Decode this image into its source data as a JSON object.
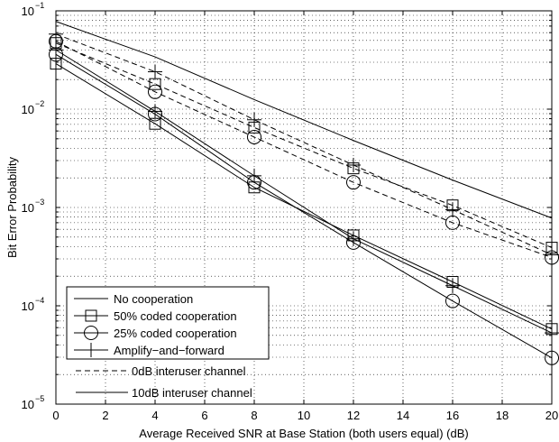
{
  "chart_data": {
    "type": "line",
    "title": "",
    "xlabel": "Average Received SNR at Base Station (both users equal) (dB)",
    "ylabel": "Bit Error Probability",
    "xlim": [
      0,
      20
    ],
    "ylim": [
      1e-05,
      0.1
    ],
    "yscale": "log",
    "grid": true,
    "x_ticks": [
      0,
      2,
      4,
      6,
      8,
      10,
      12,
      14,
      16,
      18,
      20
    ],
    "x_tick_labels": [
      "0",
      "2",
      "4",
      "6",
      "8",
      "10",
      "12",
      "14",
      "16",
      "18",
      "20"
    ],
    "y_ticks": [
      1e-05,
      0.0001,
      0.001,
      0.01,
      0.1
    ],
    "y_tick_labels": [
      {
        "base": "10",
        "exp": "−5"
      },
      {
        "base": "10",
        "exp": "−4"
      },
      {
        "base": "10",
        "exp": "−3"
      },
      {
        "base": "10",
        "exp": "−2"
      },
      {
        "base": "10",
        "exp": "−1"
      }
    ],
    "legend": {
      "placement": "bottom-left",
      "entries": [
        {
          "label": "No cooperation",
          "marker": "none"
        },
        {
          "label": "50% coded cooperation",
          "marker": "square"
        },
        {
          "label": "25% coded cooperation",
          "marker": "circle"
        },
        {
          "label": "Amplify−and−forward",
          "marker": "plus"
        }
      ],
      "style_entries": [
        {
          "label": "0dB interuser channel",
          "dash": "dashed"
        },
        {
          "label": "10dB interuser channel",
          "dash": "solid"
        }
      ]
    },
    "series": [
      {
        "marker": "none",
        "dash": "solid",
        "x": [
          0,
          4,
          8,
          12,
          16,
          20
        ],
        "values": [
          0.078,
          0.034,
          0.0125,
          0.0048,
          0.0019,
          0.00078
        ]
      },
      {
        "marker": "square",
        "dash": "dashed",
        "x": [
          0,
          4,
          8,
          12,
          16,
          20
        ],
        "values": [
          0.047,
          0.018,
          0.0065,
          0.0025,
          0.00105,
          0.00039
        ]
      },
      {
        "marker": "circle",
        "dash": "dashed",
        "x": [
          0,
          4,
          8,
          12,
          16,
          20
        ],
        "values": [
          0.049,
          0.015,
          0.0052,
          0.0018,
          0.0007,
          0.00031
        ]
      },
      {
        "marker": "plus",
        "dash": "dashed",
        "x": [
          0,
          4,
          8,
          12,
          16,
          20
        ],
        "values": [
          0.058,
          0.024,
          0.0078,
          0.0027,
          0.00095,
          0.00033
        ]
      },
      {
        "marker": "square",
        "dash": "solid",
        "x": [
          0,
          4,
          8,
          12,
          16,
          20
        ],
        "values": [
          0.029,
          0.0071,
          0.0016,
          0.00052,
          0.000175,
          5.8e-05
        ]
      },
      {
        "marker": "circle",
        "dash": "solid",
        "x": [
          0,
          4,
          8,
          12,
          16,
          20
        ],
        "values": [
          0.036,
          0.0089,
          0.0018,
          0.00044,
          0.000112,
          2.95e-05
        ]
      },
      {
        "marker": "plus",
        "dash": "solid",
        "x": [
          0,
          4,
          8,
          12,
          16,
          20
        ],
        "values": [
          0.04,
          0.0095,
          0.0021,
          0.00048,
          0.00016,
          5.3e-05
        ]
      }
    ]
  }
}
